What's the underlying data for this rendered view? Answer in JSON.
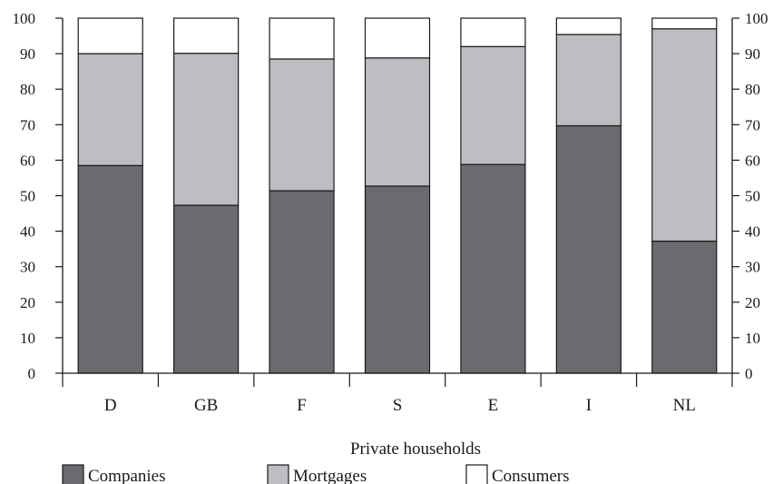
{
  "chart_data": {
    "type": "bar",
    "stacked": true,
    "categories": [
      "D",
      "GB",
      "F",
      "S",
      "E",
      "I",
      "NL"
    ],
    "series": [
      {
        "name": "Companies",
        "color": "#6a6b6f",
        "values": [
          58.5,
          47.3,
          51.4,
          52.7,
          58.8,
          69.7,
          37.2
        ]
      },
      {
        "name": "Mortgages",
        "color": "#bdbec2",
        "values": [
          31.5,
          42.8,
          37.1,
          36.1,
          33.2,
          25.7,
          59.8
        ]
      },
      {
        "name": "Consumers",
        "color": "#ffffff",
        "values": [
          10.0,
          9.9,
          11.5,
          11.2,
          8.0,
          4.6,
          3.0
        ]
      }
    ],
    "ylim": [
      0,
      100
    ],
    "yticks": [
      0,
      10,
      20,
      30,
      40,
      50,
      60,
      70,
      80,
      90,
      100
    ],
    "group_label": "Private households",
    "legend_position": "bottom",
    "grid": false
  }
}
